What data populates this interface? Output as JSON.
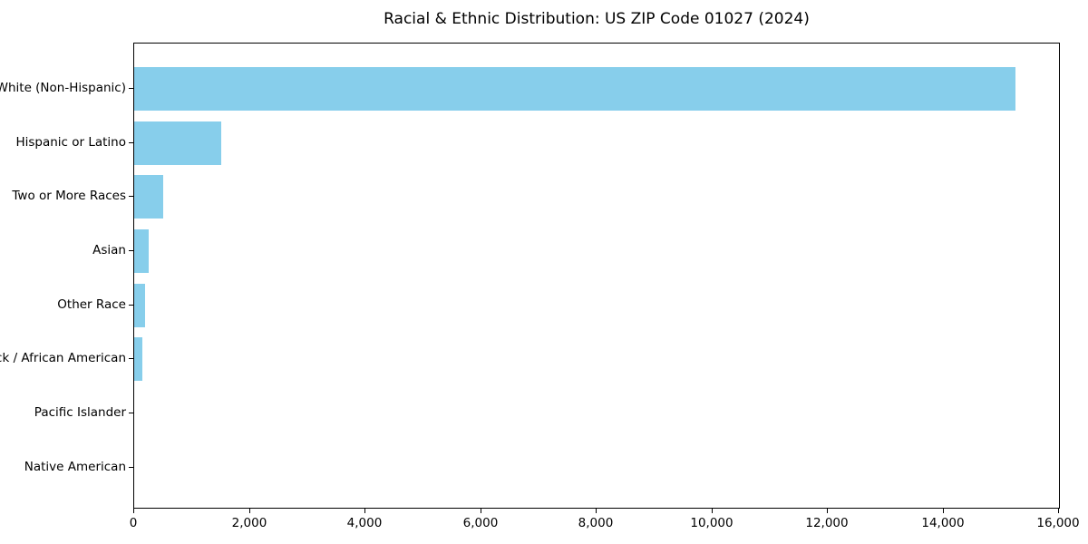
{
  "chart_data": {
    "type": "bar",
    "orientation": "horizontal",
    "title": "Racial & Ethnic Distribution: US ZIP Code 01027 (2024)",
    "categories": [
      "White (Non-Hispanic)",
      "Hispanic or Latino",
      "Two or More Races",
      "Asian",
      "Other Race",
      "Black / African American",
      "Pacific Islander",
      "Native American"
    ],
    "values": [
      15250,
      1500,
      500,
      255,
      190,
      135,
      0,
      0
    ],
    "xlabel": "",
    "ylabel": "",
    "xlim": [
      0,
      16000
    ],
    "x_ticks": [
      0,
      2000,
      4000,
      6000,
      8000,
      10000,
      12000,
      14000,
      16000
    ],
    "x_tick_labels": [
      "0",
      "2,000",
      "4,000",
      "6,000",
      "8,000",
      "10,000",
      "12,000",
      "14,000",
      "16,000"
    ],
    "bar_color": "#87CEEB",
    "axis_color": "#000000",
    "background_color": "#ffffff",
    "grid": false,
    "legend": "none"
  }
}
